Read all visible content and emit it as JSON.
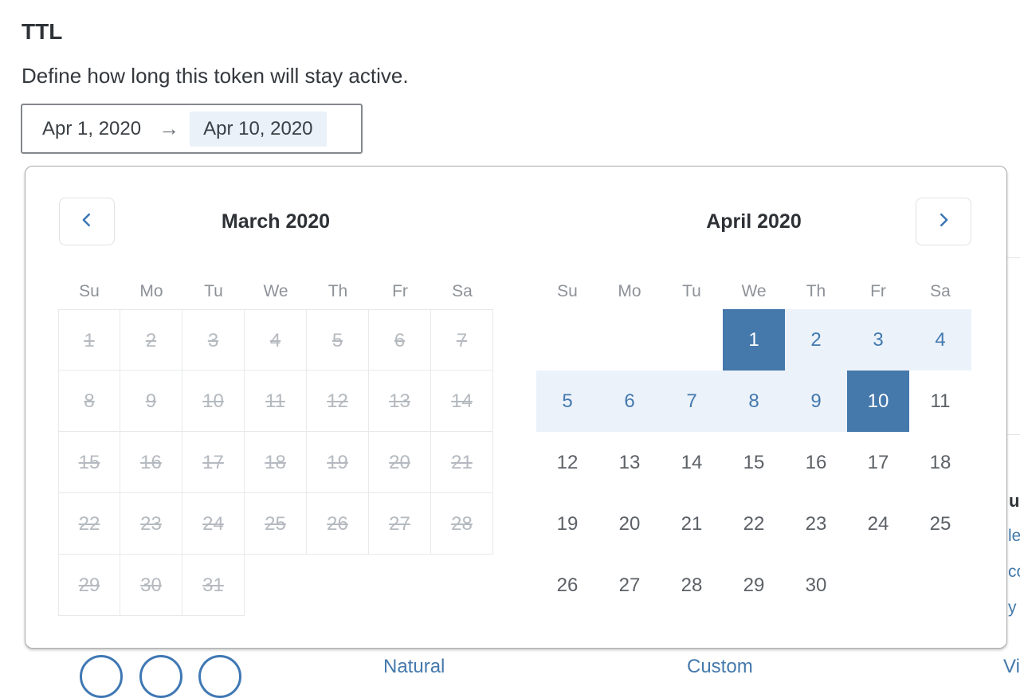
{
  "page": {
    "title": "TTL",
    "description": "Define how long this token will stay active."
  },
  "date_input": {
    "start_date": "Apr 1, 2020",
    "arrow": "→",
    "end_date": "Apr 10, 2020"
  },
  "calendar": {
    "weekdays": [
      "Su",
      "Mo",
      "Tu",
      "We",
      "Th",
      "Fr",
      "Sa"
    ],
    "prev_button": "chevron-left",
    "next_button": "chevron-right",
    "months": [
      {
        "id": "march",
        "title": "March 2020",
        "bordered": true,
        "weeks": [
          [
            {
              "d": 1,
              "s": "off"
            },
            {
              "d": 2,
              "s": "off"
            },
            {
              "d": 3,
              "s": "off"
            },
            {
              "d": 4,
              "s": "off"
            },
            {
              "d": 5,
              "s": "off"
            },
            {
              "d": 6,
              "s": "off"
            },
            {
              "d": 7,
              "s": "off"
            }
          ],
          [
            {
              "d": 8,
              "s": "off"
            },
            {
              "d": 9,
              "s": "off"
            },
            {
              "d": 10,
              "s": "off"
            },
            {
              "d": 11,
              "s": "off"
            },
            {
              "d": 12,
              "s": "off"
            },
            {
              "d": 13,
              "s": "off"
            },
            {
              "d": 14,
              "s": "off"
            }
          ],
          [
            {
              "d": 15,
              "s": "off"
            },
            {
              "d": 16,
              "s": "off"
            },
            {
              "d": 17,
              "s": "off"
            },
            {
              "d": 18,
              "s": "off"
            },
            {
              "d": 19,
              "s": "off"
            },
            {
              "d": 20,
              "s": "off"
            },
            {
              "d": 21,
              "s": "off"
            }
          ],
          [
            {
              "d": 22,
              "s": "off"
            },
            {
              "d": 23,
              "s": "off"
            },
            {
              "d": 24,
              "s": "off"
            },
            {
              "d": 25,
              "s": "off"
            },
            {
              "d": 26,
              "s": "off"
            },
            {
              "d": 27,
              "s": "off"
            },
            {
              "d": 28,
              "s": "off"
            }
          ],
          [
            {
              "d": 29,
              "s": "off"
            },
            {
              "d": 30,
              "s": "off"
            },
            {
              "d": 31,
              "s": "off"
            },
            null,
            null,
            null,
            null
          ]
        ]
      },
      {
        "id": "april",
        "title": "April 2020",
        "bordered": false,
        "weeks": [
          [
            null,
            null,
            null,
            {
              "d": 1,
              "s": "start"
            },
            {
              "d": 2,
              "s": "range"
            },
            {
              "d": 3,
              "s": "range"
            },
            {
              "d": 4,
              "s": "range"
            }
          ],
          [
            {
              "d": 5,
              "s": "range"
            },
            {
              "d": 6,
              "s": "range"
            },
            {
              "d": 7,
              "s": "range"
            },
            {
              "d": 8,
              "s": "range"
            },
            {
              "d": 9,
              "s": "range"
            },
            {
              "d": 10,
              "s": "end"
            },
            {
              "d": 11
            }
          ],
          [
            {
              "d": 12
            },
            {
              "d": 13
            },
            {
              "d": 14
            },
            {
              "d": 15
            },
            {
              "d": 16
            },
            {
              "d": 17
            },
            {
              "d": 18
            }
          ],
          [
            {
              "d": 19
            },
            {
              "d": 20
            },
            {
              "d": 21
            },
            {
              "d": 22
            },
            {
              "d": 23
            },
            {
              "d": 24
            },
            {
              "d": 25
            }
          ],
          [
            {
              "d": 26
            },
            {
              "d": 27
            },
            {
              "d": 28
            },
            {
              "d": 29
            },
            {
              "d": 30
            },
            null,
            null
          ]
        ]
      }
    ]
  },
  "background_fragments": {
    "heading_fragment": "u",
    "link_fragment_1": "le",
    "link_fragment_2": "co",
    "link_fragment_3": "y",
    "bottom_link_1": "Natural",
    "bottom_link_2": "Custom",
    "bottom_link_3": "Vi"
  },
  "colors": {
    "selected_day_bg": "#4578ab",
    "range_day_bg": "#ecf2fa",
    "range_day_text": "#4279ae",
    "disabled_day_text": "#b5bac0",
    "normal_day_text": "#5c6167",
    "accent_blue": "#3f78b4",
    "input_highlight_bg": "#eaf1f9",
    "grid_border": "#e7e9eb"
  }
}
